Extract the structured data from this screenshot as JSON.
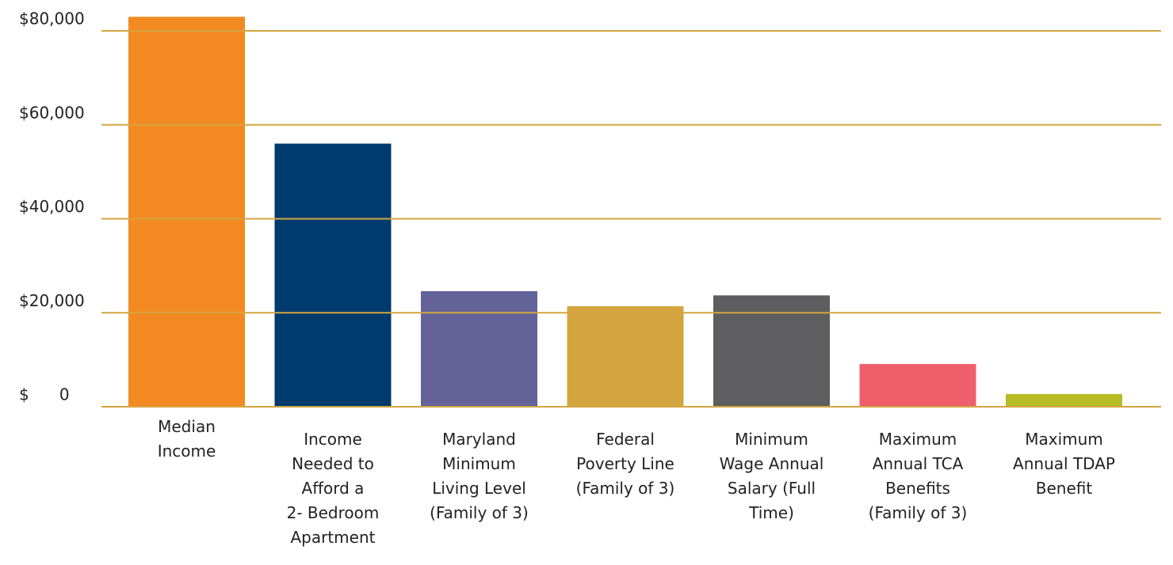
{
  "chart_data": {
    "type": "bar",
    "categories": [
      "Median\nIncome",
      "Income\nNeeded to\nAfford a\n2- Bedroom\nApartment",
      "Maryland\nMinimum\nLiving Level\n(Family of 3)",
      "Federal\nPoverty Line\n(Family of 3)",
      "Minimum\nWage Annual\nSalary (Full\nTime)",
      "Maximum\nAnnual TCA\nBenefits\n(Family of 3)",
      "Maximum\nAnnual TDAP\nBenefit"
    ],
    "values": [
      83000,
      56000,
      24600,
      21400,
      23700,
      9100,
      2700
    ],
    "colors": [
      "#f28a21",
      "#003b6d",
      "#636399",
      "#d4a53f",
      "#5e5e60",
      "#ef5f6b",
      "#b5bd23"
    ],
    "ylim": [
      0,
      80000
    ],
    "yticks": [
      {
        "value": 0,
        "label": "$      0"
      },
      {
        "value": 20000,
        "label": "$20,000"
      },
      {
        "value": 40000,
        "label": "$40,000"
      },
      {
        "value": 60000,
        "label": "$60,000"
      },
      {
        "value": 80000,
        "label": "$80,000"
      }
    ],
    "grid": true,
    "grid_color": "#d4a53f"
  }
}
